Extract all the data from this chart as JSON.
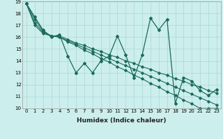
{
  "xlabel": "Humidex (Indice chaleur)",
  "bg_color": "#cceeed",
  "grid_color": "#aad8d6",
  "line_color": "#1a6b5a",
  "xlim_min": -0.5,
  "xlim_max": 23.5,
  "ylim_min": 10,
  "ylim_max": 19,
  "xticks": [
    0,
    1,
    2,
    3,
    4,
    5,
    6,
    7,
    8,
    9,
    10,
    11,
    12,
    13,
    14,
    15,
    16,
    17,
    18,
    19,
    20,
    21,
    22,
    23
  ],
  "yticks": [
    10,
    11,
    12,
    13,
    14,
    15,
    16,
    17,
    18,
    19
  ],
  "tick_fontsize": 5.0,
  "xlabel_fontsize": 6.5,
  "series_zigzag": [
    18.8,
    17.7,
    16.6,
    16.0,
    16.2,
    14.4,
    13.0,
    13.8,
    13.0,
    14.0,
    14.4,
    16.1,
    14.5,
    12.6,
    14.5,
    17.6,
    16.6,
    17.5,
    10.4,
    12.6,
    12.3,
    11.5,
    11.1,
    11.6
  ],
  "series_line1": [
    18.8,
    17.5,
    16.5,
    16.1,
    16.0,
    15.6,
    15.3,
    14.9,
    14.6,
    14.2,
    13.9,
    13.5,
    13.2,
    12.8,
    12.5,
    12.1,
    11.8,
    11.4,
    11.1,
    10.7,
    10.4,
    10.0,
    10.0,
    10.0
  ],
  "series_line2": [
    18.8,
    17.2,
    16.4,
    16.1,
    16.1,
    15.8,
    15.5,
    15.3,
    15.0,
    14.8,
    14.5,
    14.3,
    14.0,
    13.8,
    13.5,
    13.3,
    13.0,
    12.8,
    12.5,
    12.3,
    12.0,
    11.8,
    11.5,
    11.3
  ],
  "series_line3": [
    18.8,
    17.0,
    16.3,
    16.1,
    16.0,
    15.7,
    15.4,
    15.1,
    14.8,
    14.5,
    14.2,
    13.9,
    13.6,
    13.3,
    13.0,
    12.7,
    12.4,
    12.1,
    11.8,
    11.5,
    11.2,
    10.9,
    10.6,
    10.3
  ]
}
